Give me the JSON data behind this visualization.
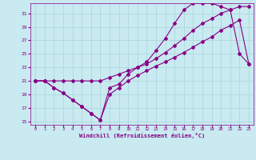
{
  "xlabel": "Windchill (Refroidissement éolien,°C)",
  "bg_color": "#c8eaf0",
  "grid_color": "#aad4dc",
  "line_color": "#880088",
  "xlim": [
    -0.5,
    23.5
  ],
  "ylim": [
    14.5,
    32.5
  ],
  "xticks": [
    0,
    1,
    2,
    3,
    4,
    5,
    6,
    7,
    8,
    9,
    10,
    11,
    12,
    13,
    14,
    15,
    16,
    17,
    18,
    19,
    20,
    21,
    22,
    23
  ],
  "yticks": [
    15,
    17,
    19,
    21,
    23,
    25,
    27,
    29,
    31
  ],
  "line1_x": [
    0,
    1,
    2,
    3,
    4,
    5,
    6,
    7,
    8,
    9,
    10,
    11,
    12,
    13,
    14,
    15,
    16,
    17,
    18,
    19,
    20,
    21,
    22,
    23
  ],
  "line1_y": [
    21,
    21,
    20,
    19.2,
    18.2,
    17.2,
    16.2,
    15.2,
    20,
    20.5,
    22,
    23,
    23.8,
    25.5,
    27.3,
    29.5,
    31.5,
    32.5,
    32.5,
    32.5,
    32,
    31.5,
    25,
    23.5
  ],
  "line2_x": [
    0,
    1,
    2,
    3,
    4,
    5,
    6,
    7,
    8,
    9,
    10,
    11,
    12,
    13,
    14,
    15,
    16,
    17,
    18,
    19,
    20,
    21,
    22,
    23
  ],
  "line2_y": [
    21,
    21,
    21,
    21,
    21,
    21,
    21,
    21,
    21.5,
    22,
    22.5,
    23,
    23.5,
    24.3,
    25.2,
    26.2,
    27.3,
    28.5,
    29.5,
    30.2,
    31,
    31.5,
    32,
    32
  ],
  "line3_x": [
    0,
    1,
    2,
    3,
    4,
    5,
    6,
    7,
    8,
    9,
    10,
    11,
    12,
    13,
    14,
    15,
    16,
    17,
    18,
    19,
    20,
    21,
    22,
    23
  ],
  "line3_y": [
    21,
    21,
    20,
    19.2,
    18.2,
    17.2,
    16.2,
    15.2,
    19,
    20,
    21,
    21.8,
    22.5,
    23.2,
    23.8,
    24.5,
    25.2,
    26,
    26.8,
    27.5,
    28.5,
    29.2,
    30,
    23.5
  ]
}
